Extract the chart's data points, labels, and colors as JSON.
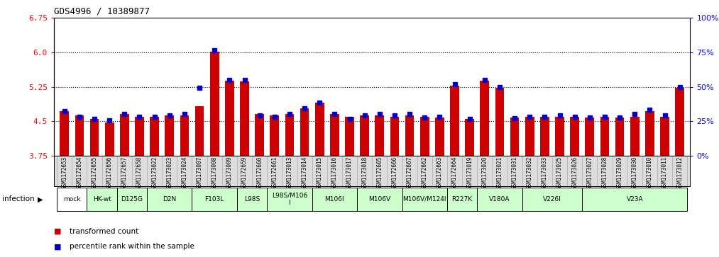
{
  "title": "GDS4996 / 10389877",
  "samples": [
    "GSM1172653",
    "GSM1172654",
    "GSM1172655",
    "GSM1172656",
    "GSM1172657",
    "GSM1172658",
    "GSM1173022",
    "GSM1173023",
    "GSM1173024",
    "GSM1173007",
    "GSM1173008",
    "GSM1173009",
    "GSM1172659",
    "GSM1172660",
    "GSM1172661",
    "GSM1173013",
    "GSM1173014",
    "GSM1173015",
    "GSM1173016",
    "GSM1173017",
    "GSM1173018",
    "GSM1172665",
    "GSM1172666",
    "GSM1172667",
    "GSM1172662",
    "GSM1172663",
    "GSM1172664",
    "GSM1173019",
    "GSM1173020",
    "GSM1173021",
    "GSM1173031",
    "GSM1173032",
    "GSM1173033",
    "GSM1173025",
    "GSM1173026",
    "GSM1173027",
    "GSM1173028",
    "GSM1173029",
    "GSM1173030",
    "GSM1173010",
    "GSM1173011",
    "GSM1173012"
  ],
  "red_values": [
    4.72,
    4.62,
    4.55,
    4.47,
    4.65,
    4.6,
    4.6,
    4.62,
    4.62,
    4.82,
    6.02,
    5.38,
    5.37,
    4.65,
    4.62,
    4.65,
    4.78,
    4.9,
    4.65,
    4.6,
    4.62,
    4.62,
    4.6,
    4.62,
    4.6,
    4.58,
    5.27,
    4.55,
    5.38,
    5.22,
    4.58,
    4.6,
    4.6,
    4.6,
    4.6,
    4.58,
    4.6,
    4.58,
    4.6,
    4.72,
    4.6,
    5.22
  ],
  "blue_values": [
    4.72,
    4.6,
    4.55,
    4.52,
    4.65,
    4.6,
    4.6,
    4.62,
    4.65,
    5.22,
    6.05,
    5.4,
    5.4,
    4.62,
    4.6,
    4.65,
    4.78,
    4.9,
    4.65,
    4.55,
    4.62,
    4.65,
    4.62,
    4.65,
    4.58,
    4.6,
    5.3,
    4.55,
    5.4,
    5.25,
    4.57,
    4.6,
    4.6,
    4.62,
    4.6,
    4.58,
    4.6,
    4.58,
    4.65,
    4.75,
    4.62,
    5.25
  ],
  "groups": [
    {
      "label": "mock",
      "start": 0,
      "end": 2,
      "color": "#ffffff"
    },
    {
      "label": "HK-wt",
      "start": 2,
      "end": 4,
      "color": "#ccffcc"
    },
    {
      "label": "D125G",
      "start": 4,
      "end": 6,
      "color": "#ccffcc"
    },
    {
      "label": "D2N",
      "start": 6,
      "end": 9,
      "color": "#ccffcc"
    },
    {
      "label": "F103L",
      "start": 9,
      "end": 12,
      "color": "#ccffcc"
    },
    {
      "label": "L98S",
      "start": 12,
      "end": 14,
      "color": "#ccffcc"
    },
    {
      "label": "L98S/M106\nI",
      "start": 14,
      "end": 17,
      "color": "#ccffcc"
    },
    {
      "label": "M106I",
      "start": 17,
      "end": 20,
      "color": "#ccffcc"
    },
    {
      "label": "M106V",
      "start": 20,
      "end": 23,
      "color": "#ccffcc"
    },
    {
      "label": "M106V/M124I",
      "start": 23,
      "end": 26,
      "color": "#ccffcc"
    },
    {
      "label": "R227K",
      "start": 26,
      "end": 28,
      "color": "#ccffcc"
    },
    {
      "label": "V180A",
      "start": 28,
      "end": 31,
      "color": "#ccffcc"
    },
    {
      "label": "V226I",
      "start": 31,
      "end": 35,
      "color": "#ccffcc"
    },
    {
      "label": "V23A",
      "start": 35,
      "end": 42,
      "color": "#ccffcc"
    }
  ],
  "ylim_left": [
    3.75,
    6.75
  ],
  "ylim_right": [
    0,
    100
  ],
  "yticks_left": [
    3.75,
    4.5,
    5.25,
    6.0,
    6.75
  ],
  "yticks_right": [
    0,
    25,
    50,
    75,
    100
  ],
  "bar_color": "#cc0000",
  "dot_color": "#0000cc",
  "bg_color": "#ffffff",
  "infection_label": "infection"
}
